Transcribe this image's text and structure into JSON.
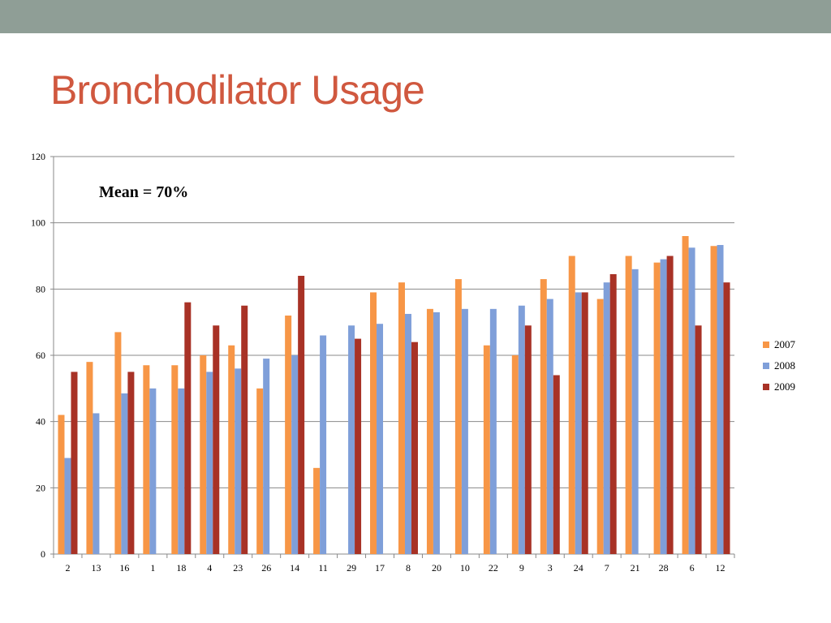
{
  "slide": {
    "title": "Bronchodilator Usage",
    "title_color": "#d0583f",
    "band_color": "#8f9e96"
  },
  "chart_data": {
    "type": "bar",
    "title": "",
    "xlabel": "",
    "ylabel": "",
    "ylim": [
      0,
      120
    ],
    "yticks": [
      0,
      20,
      40,
      60,
      80,
      100,
      120
    ],
    "grid": true,
    "legend_position": "right",
    "annotation": "Mean = 70%",
    "categories": [
      "2",
      "13",
      "16",
      "1",
      "18",
      "4",
      "23",
      "26",
      "14",
      "11",
      "29",
      "17",
      "8",
      "20",
      "10",
      "22",
      "9",
      "3",
      "24",
      "7",
      "21",
      "28",
      "6",
      "12"
    ],
    "series": [
      {
        "name": "2007",
        "color": "#f79646",
        "values": [
          42,
          58,
          67,
          57,
          57,
          60,
          63,
          50,
          72,
          26,
          null,
          79,
          82,
          74,
          83,
          63,
          60,
          83,
          90,
          77,
          90,
          88,
          96,
          93
        ]
      },
      {
        "name": "2008",
        "color": "#7f9fd9",
        "values": [
          29,
          42.5,
          48.5,
          50,
          50,
          55,
          56,
          59,
          60,
          66,
          69,
          69.5,
          72.5,
          73,
          74,
          74,
          75,
          77,
          79,
          82,
          86,
          89,
          92.5,
          93.3
        ]
      },
      {
        "name": "2009",
        "color": "#a83226",
        "values": [
          55,
          null,
          55,
          null,
          76,
          69,
          75,
          null,
          84,
          null,
          65,
          null,
          64,
          null,
          null,
          null,
          69,
          54,
          79,
          84.5,
          null,
          90,
          69,
          82
        ]
      }
    ]
  }
}
